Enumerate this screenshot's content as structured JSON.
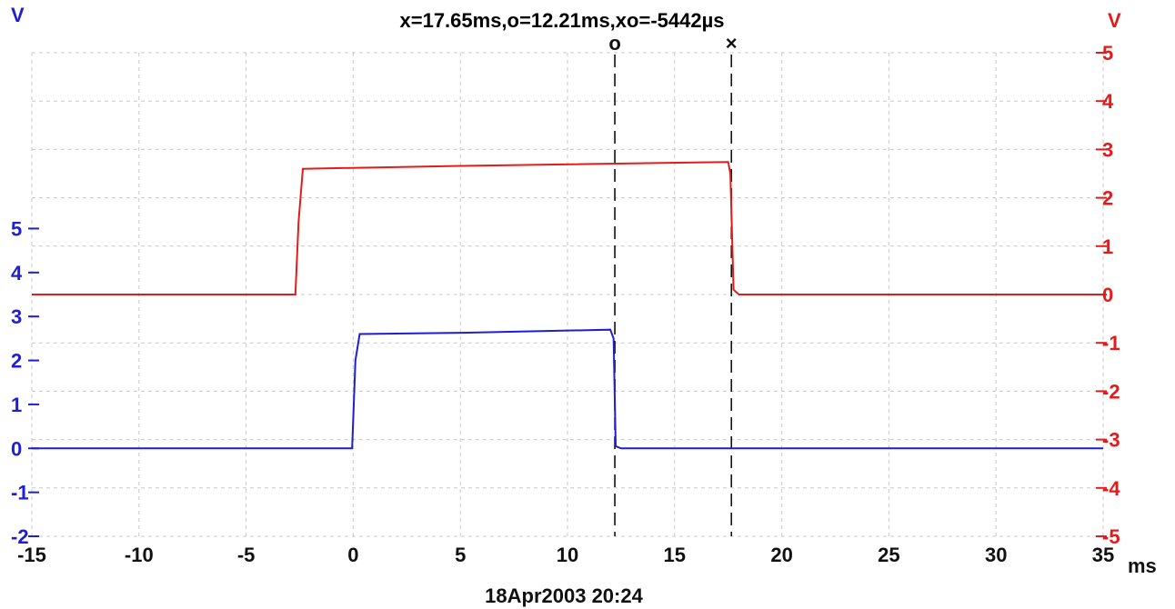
{
  "chart_data": {
    "type": "line",
    "title": "x=17.65ms,o=12.21ms,xo=-5442µs",
    "footer": "18Apr2003  20:24",
    "xlabel": "ms",
    "xlim": [
      -15,
      35
    ],
    "x_ticks": [
      -15,
      -10,
      -5,
      0,
      5,
      10,
      15,
      20,
      25,
      30,
      35
    ],
    "y_left": {
      "label": "V",
      "range": [
        -2,
        9
      ],
      "ticks": [
        -2,
        -1,
        0,
        1,
        2,
        3,
        4,
        5
      ],
      "color": "#1f1fd0"
    },
    "y_right": {
      "label": "V",
      "range": [
        -5,
        5
      ],
      "ticks": [
        -5,
        -4,
        -3,
        -2,
        -1,
        0,
        1,
        2,
        3,
        4,
        5
      ],
      "color": "#e31b1b"
    },
    "grid": true,
    "series": [
      {
        "axis": "left",
        "color": "#1f1fd0",
        "x": [
          -15,
          -0.05,
          0.1,
          0.3,
          5,
          12.0,
          12.15,
          12.25,
          12.5,
          35
        ],
        "y": [
          0,
          0,
          2.0,
          2.6,
          2.63,
          2.7,
          2.5,
          0.05,
          0,
          0
        ]
      },
      {
        "axis": "right",
        "color": "#e31b1b",
        "x": [
          -15,
          -2.7,
          -2.55,
          -2.35,
          5,
          17.5,
          17.6,
          17.75,
          18.0,
          35
        ],
        "y": [
          0,
          0,
          1.5,
          2.6,
          2.66,
          2.74,
          2.5,
          0.1,
          0,
          0
        ]
      }
    ],
    "cursors": [
      {
        "label": "o",
        "x": 12.21
      },
      {
        "label": "×",
        "x": 17.65
      }
    ]
  }
}
